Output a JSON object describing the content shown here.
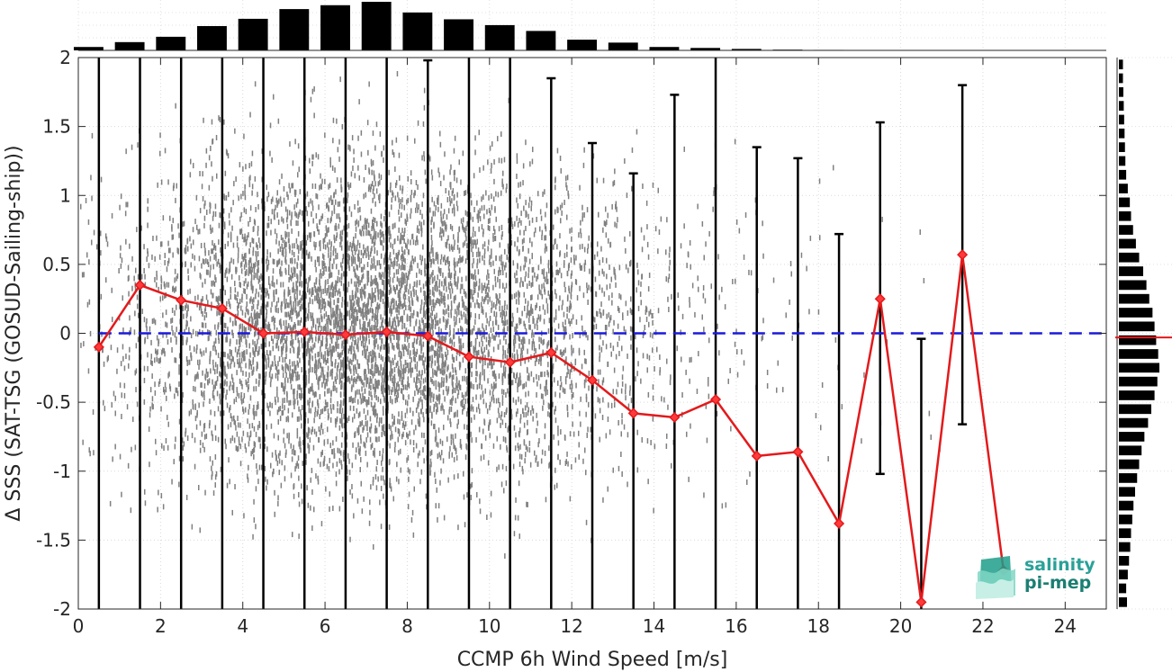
{
  "logo": {
    "line1": "salinity",
    "line2": "pi-mep"
  },
  "chart_data": {
    "type": "line",
    "title": "",
    "xlabel": "CCMP 6h Wind Speed [m/s]",
    "ylabel": "Δ SSS (SAT-TSG (GOSUD-Sailing-ship))",
    "xlim": [
      0,
      25
    ],
    "ylim": [
      -2,
      2
    ],
    "x_ticks": [
      0,
      2,
      4,
      6,
      8,
      10,
      12,
      14,
      16,
      18,
      20,
      22,
      24
    ],
    "y_ticks": [
      -2,
      -1.5,
      -1,
      -0.5,
      0,
      0.5,
      1,
      1.5,
      2
    ],
    "x_tick_labels": [
      "0",
      "2",
      "4",
      "6",
      "8",
      "10",
      "12",
      "14",
      "16",
      "18",
      "20",
      "22",
      "24"
    ],
    "y_tick_labels": [
      "-2",
      "-1.5",
      "-1",
      "-0.5",
      "0",
      "0.5",
      "1",
      "1.5",
      "2"
    ],
    "grid": true,
    "reference_line": {
      "y": 0,
      "style": "dashed",
      "color": "#1a1adb"
    },
    "colors": {
      "mean": "#e31a1c",
      "errorbar": "#000000",
      "scatter": "#808080",
      "histogram": "#000000"
    },
    "series": [
      {
        "x": [
          0.5,
          1.5,
          2.5,
          3.5,
          4.5,
          5.5,
          6.5,
          7.5,
          8.5,
          9.5,
          10.5,
          11.5,
          12.5,
          13.5,
          14.5,
          15.5,
          16.5,
          17.5,
          18.5,
          19.5,
          20.5,
          21.5,
          22.5
        ],
        "values": [
          -0.1,
          0.35,
          0.24,
          0.18,
          0.0,
          0.01,
          -0.01,
          0.01,
          -0.02,
          -0.17,
          -0.21,
          -0.14,
          -0.34,
          -0.58,
          -0.61,
          -0.48,
          -0.89,
          -0.86,
          -1.38,
          0.25,
          -1.95,
          0.57,
          -1.72
        ]
      }
    ],
    "error_bars": {
      "x": [
        0.5,
        1.5,
        2.5,
        3.5,
        4.5,
        5.5,
        6.5,
        7.5,
        8.5,
        9.5,
        10.5,
        11.5,
        12.5,
        13.5,
        14.5,
        15.5,
        16.5,
        17.5,
        18.5,
        19.5,
        20.5,
        21.5
      ],
      "lower": [
        -2,
        -2,
        -2,
        -2,
        -2,
        -2,
        -2,
        -2,
        -2,
        -2,
        -2,
        -2,
        -2,
        -2,
        -2,
        -2,
        -2,
        -2,
        -2,
        -1.02,
        -2,
        -0.66
      ],
      "upper": [
        2,
        2,
        2,
        2,
        2,
        2,
        2,
        2,
        1.98,
        2,
        2,
        1.85,
        1.38,
        1.16,
        1.73,
        2,
        1.35,
        1.27,
        0.72,
        1.53,
        -0.04,
        1.8
      ]
    },
    "top_histogram": {
      "bin_centers": [
        0.25,
        1.25,
        2.25,
        3.25,
        4.25,
        5.25,
        6.25,
        7.25,
        8.25,
        9.25,
        10.25,
        11.25,
        12.25,
        13.25,
        14.25,
        15.25,
        16.25,
        17.25,
        18.25,
        19.25,
        20.25,
        21.25,
        22.25
      ],
      "relative_counts": [
        0.07,
        0.17,
        0.28,
        0.5,
        0.65,
        0.85,
        0.93,
        1.0,
        0.78,
        0.64,
        0.52,
        0.4,
        0.22,
        0.16,
        0.07,
        0.05,
        0.03,
        0.015,
        0.01,
        0.005,
        0.005,
        0.0,
        0.0
      ]
    },
    "right_histogram": {
      "bin_centers": [
        -1.95,
        -1.85,
        -1.75,
        -1.65,
        -1.55,
        -1.45,
        -1.35,
        -1.25,
        -1.15,
        -1.05,
        -0.95,
        -0.85,
        -0.75,
        -0.65,
        -0.55,
        -0.45,
        -0.35,
        -0.25,
        -0.15,
        -0.05,
        0.05,
        0.15,
        0.25,
        0.35,
        0.45,
        0.55,
        0.65,
        0.75,
        0.85,
        0.95,
        1.05,
        1.15,
        1.25,
        1.35,
        1.45,
        1.55,
        1.65,
        1.75,
        1.85,
        1.95
      ],
      "relative_counts": [
        0.2,
        0.18,
        0.22,
        0.25,
        0.28,
        0.3,
        0.33,
        0.36,
        0.4,
        0.45,
        0.5,
        0.56,
        0.63,
        0.72,
        0.8,
        0.88,
        0.95,
        1.0,
        0.97,
        0.92,
        0.88,
        0.83,
        0.75,
        0.68,
        0.6,
        0.5,
        0.42,
        0.35,
        0.3,
        0.27,
        0.22,
        0.18,
        0.16,
        0.15,
        0.14,
        0.13,
        0.12,
        0.11,
        0.1,
        0.1
      ],
      "mean_marker": -0.03
    }
  }
}
